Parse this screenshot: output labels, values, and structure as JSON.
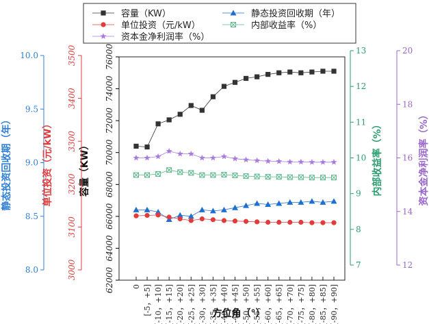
{
  "chart_data": {
    "type": "line",
    "x_title": "方位角（°）",
    "categories": [
      "0",
      "[-5，+5]",
      "[-10，+10]",
      "[-15，+15]",
      "[-20，+20]",
      "[-25，+25]",
      "[-30，+30]",
      "[-35，+35]",
      "[-40，+40]",
      "[-45，+45]",
      "[-50，+50]",
      "[-55，+55]",
      "[-60，+60]",
      "[-65，+65]",
      "[-70，+70]",
      "[-75，+75]",
      "[-80，+80]",
      "[-85，+85]",
      "[-90，+90]"
    ],
    "axes": {
      "capacity": {
        "title": "容量（KW）",
        "min": 62000,
        "max": 76000,
        "ticks": [
          "62000",
          "64000",
          "66000",
          "68000",
          "70000",
          "72000",
          "74000",
          "76000"
        ],
        "color": "#000000"
      },
      "payback": {
        "title": "静态投资回收期（年）",
        "min": 8.0,
        "max": 10.0,
        "ticks": [
          "8.0",
          "8.5",
          "9.0",
          "9.5",
          "10.0"
        ],
        "color": "#2e7fd6"
      },
      "unit_invest": {
        "title": "单位投资（元/kW）",
        "min": 3000,
        "max": 3500,
        "ticks": [
          "3000",
          "3100",
          "3200",
          "3300",
          "3400",
          "3500"
        ],
        "color": "#e03c3c"
      },
      "irr": {
        "title": "内部收益率（%）",
        "min": 7,
        "max": 13,
        "ticks": [
          "7",
          "8",
          "9",
          "10",
          "11",
          "12",
          "13"
        ],
        "color": "#2a9d6f"
      },
      "roe": {
        "title": "资本金净利润率（%）",
        "min": 12,
        "max": 20,
        "ticks": [
          "12",
          "14",
          "16",
          "18",
          "20"
        ],
        "color": "#9966cc"
      }
    },
    "series": [
      {
        "name": "容量（KW）",
        "axis": "capacity",
        "color": "#333333",
        "marker": "square",
        "values": [
          70400,
          70350,
          71800,
          72050,
          72400,
          72950,
          72650,
          73500,
          74150,
          74400,
          74650,
          74750,
          74900,
          75000,
          75050,
          75000,
          75050,
          75100,
          75100
        ]
      },
      {
        "name": "静态投资回收期（年）",
        "axis": "payback",
        "color": "#1f6fd1",
        "marker": "triangle",
        "values": [
          8.56,
          8.56,
          8.54,
          8.47,
          8.51,
          8.5,
          8.56,
          8.55,
          8.56,
          8.58,
          8.6,
          8.62,
          8.61,
          8.62,
          8.63,
          8.63,
          8.64,
          8.63,
          8.64
        ]
      },
      {
        "name": "单位投资（元/kW）",
        "axis": "unit_invest",
        "color": "#e03c3c",
        "marker": "circle",
        "values": [
          3126,
          3127,
          3128,
          3123,
          3119,
          3115,
          3119,
          3117,
          3115,
          3114,
          3113,
          3112,
          3111,
          3111,
          3111,
          3111,
          3110,
          3110,
          3110
        ]
      },
      {
        "name": "内部收益率（%）",
        "axis": "irr",
        "color": "#5cb88a",
        "marker": "square-x",
        "values": [
          9.52,
          9.52,
          9.55,
          9.66,
          9.6,
          9.58,
          9.52,
          9.52,
          9.53,
          9.51,
          9.49,
          9.48,
          9.47,
          9.47,
          9.46,
          9.46,
          9.45,
          9.45,
          9.45
        ]
      },
      {
        "name": "资本金净利润率（%）",
        "axis": "roe",
        "color": "#a77be0",
        "marker": "star",
        "values": [
          16.0,
          16.0,
          16.05,
          16.25,
          16.15,
          16.15,
          16.0,
          16.0,
          16.05,
          15.97,
          15.93,
          15.9,
          15.88,
          15.87,
          15.85,
          15.85,
          15.84,
          15.84,
          15.84
        ]
      }
    ],
    "legend_position": "top"
  }
}
